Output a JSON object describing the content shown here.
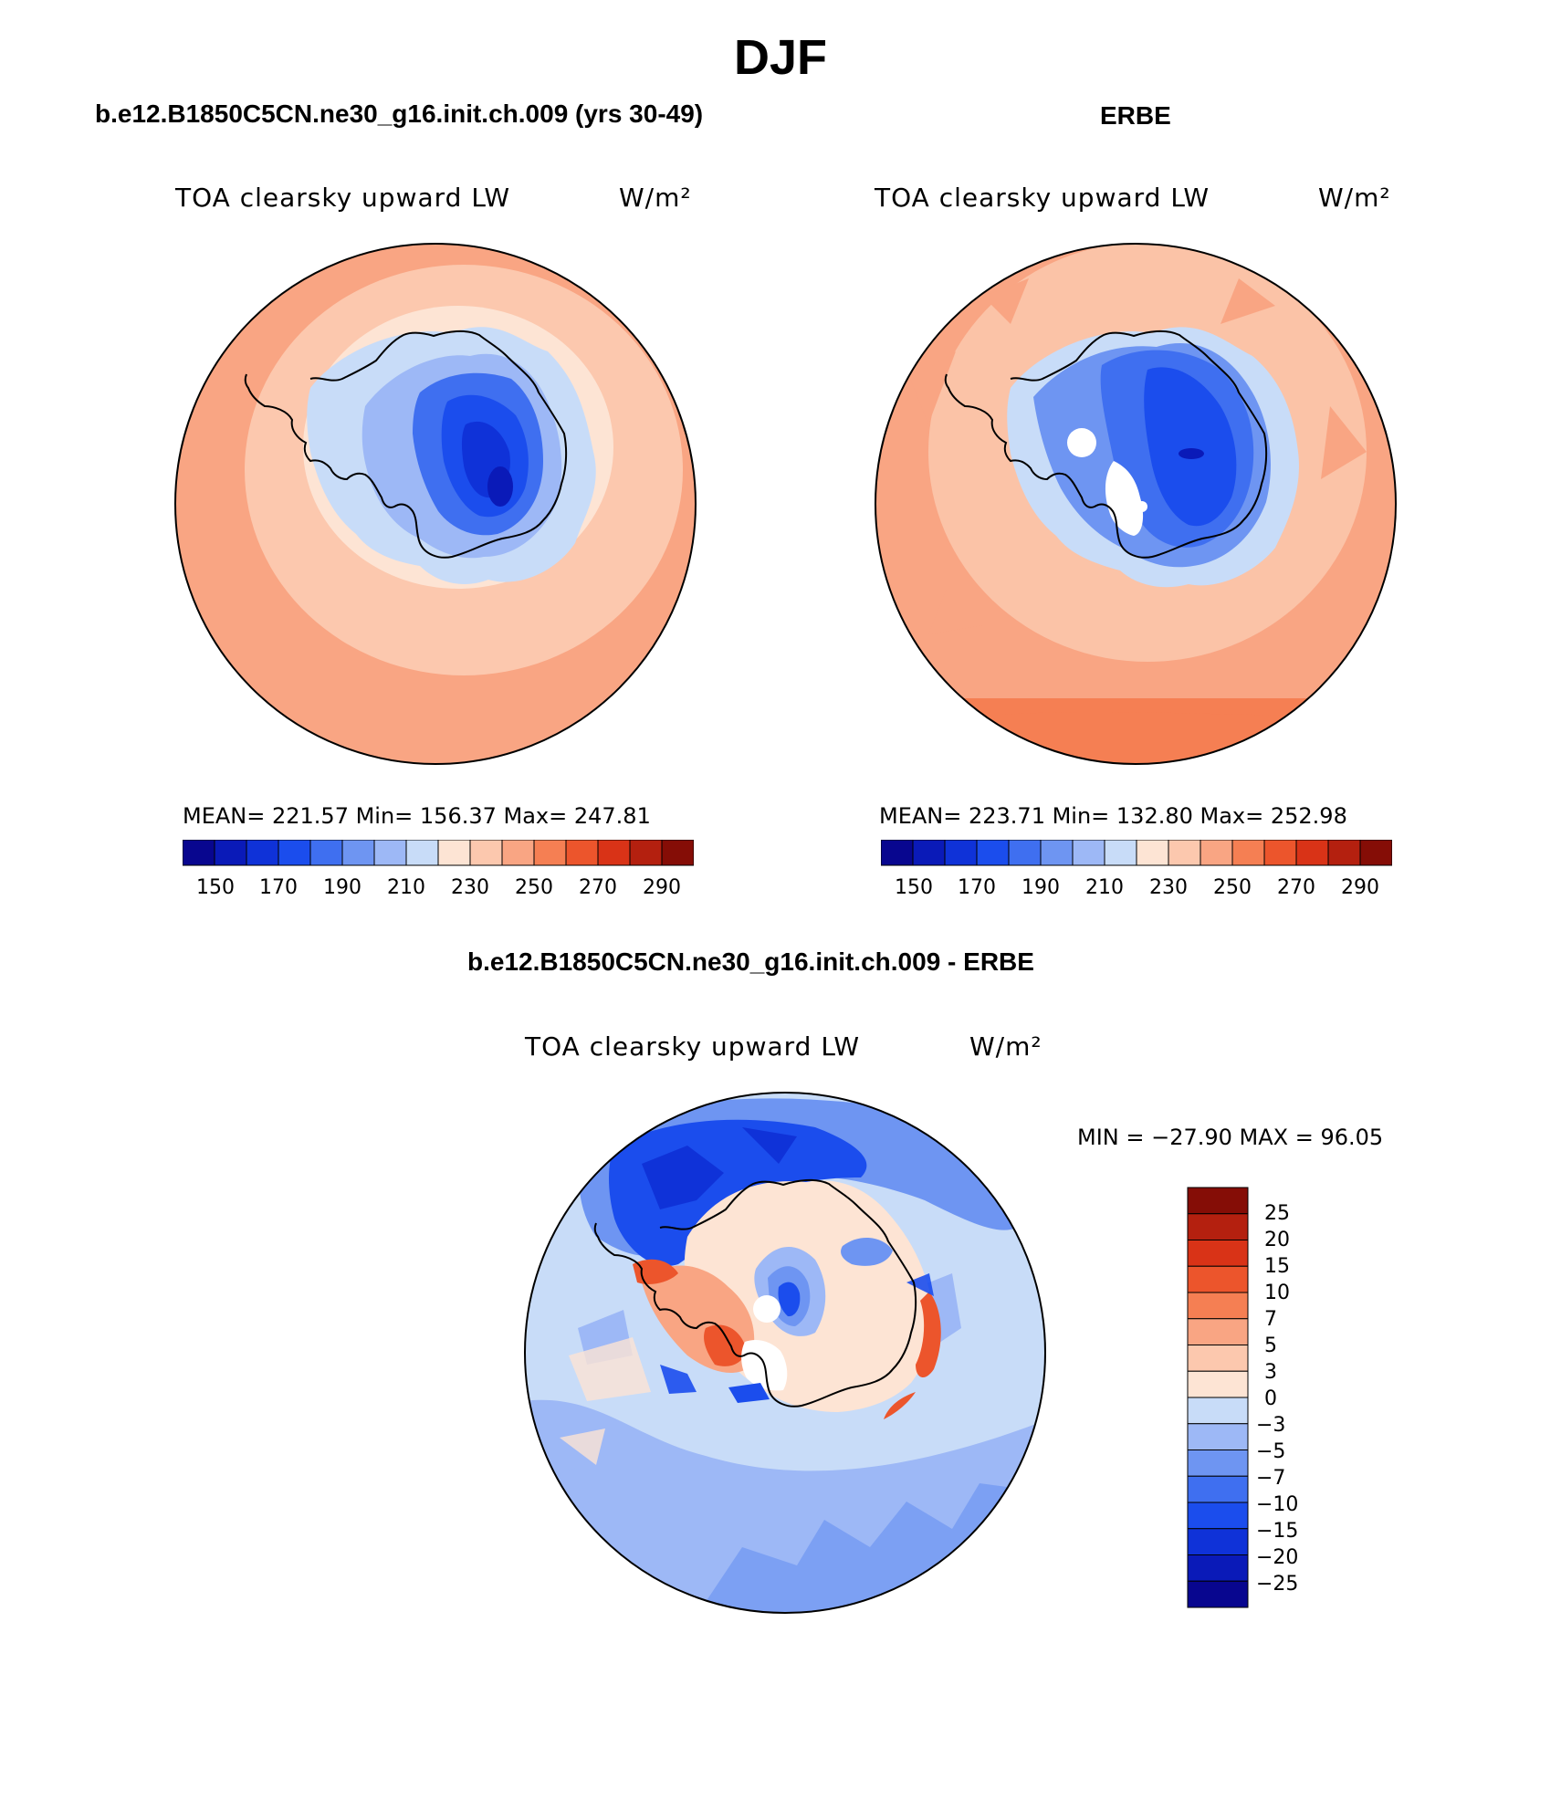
{
  "page_title": "DJF",
  "colors": {
    "pole_hole": "#ffffff",
    "coast": "#000000",
    "ocean_warm": "#f4a582",
    "ice_cold": "#1a4fe6"
  },
  "panels": [
    {
      "title": "b.e12.B1850C5CN.ne30_g16.init.ch.009 (yrs 30-49)",
      "variable": "TOA clearsky upward LW",
      "units": "W/m²",
      "stats": "MEAN= 221.57   Min= 156.37   Max= 247.81",
      "colorbar_ticks": [
        "150",
        "170",
        "190",
        "210",
        "230",
        "250",
        "270",
        "290"
      ]
    },
    {
      "title": "ERBE",
      "variable": "TOA clearsky upward LW",
      "units": "W/m²",
      "stats": "MEAN= 223.71   Min= 132.80   Max= 252.98",
      "colorbar_ticks": [
        "150",
        "170",
        "190",
        "210",
        "230",
        "250",
        "270",
        "290"
      ]
    },
    {
      "title": "b.e12.B1850C5CN.ne30_g16.init.ch.009 - ERBE",
      "variable": "TOA clearsky upward LW",
      "units": "W/m²",
      "stats": "MIN = −27.90 MAX =  96.05",
      "colorbar_ticks": [
        "25",
        "20",
        "15",
        "10",
        "7",
        "5",
        "3",
        "0",
        "−3",
        "−5",
        "−7",
        "−10",
        "−15",
        "−20",
        "−25"
      ]
    }
  ],
  "palettes": {
    "abs": [
      "#08068f",
      "#0a1ab8",
      "#0f32d8",
      "#1b4ded",
      "#3f6ff0",
      "#6e95f2",
      "#9db8f6",
      "#c8dcf8",
      "#fde4d4",
      "#fcc8ae",
      "#f9a583",
      "#f57f53",
      "#ec552c",
      "#d93317",
      "#b4200f",
      "#850d06"
    ],
    "diff": [
      "#850d06",
      "#b4200f",
      "#d93317",
      "#ec552c",
      "#f57f53",
      "#f9a583",
      "#fcc8ae",
      "#fde4d4",
      "#c8dcf8",
      "#9db8f6",
      "#6e95f2",
      "#3f6ff0",
      "#1b4ded",
      "#0f32d8",
      "#0a1ab8",
      "#08068f"
    ]
  }
}
